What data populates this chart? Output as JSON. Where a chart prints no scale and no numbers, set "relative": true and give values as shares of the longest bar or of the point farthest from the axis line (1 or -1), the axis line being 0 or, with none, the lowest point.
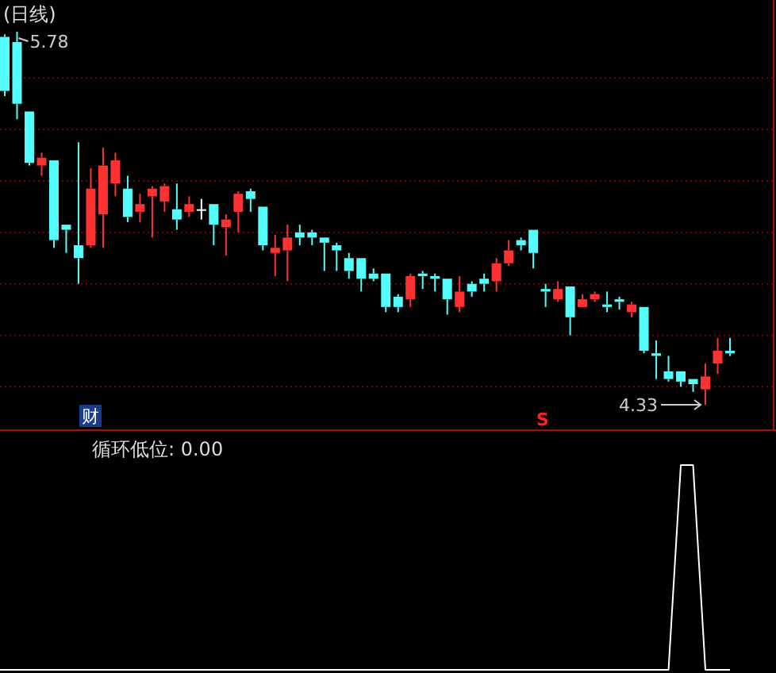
{
  "chart_data": [
    {
      "type": "candlestick",
      "title": "(日线)",
      "categories": [
        null,
        null,
        null,
        null,
        null,
        null,
        null,
        null,
        null,
        null,
        null,
        null,
        null,
        null,
        null,
        null,
        null,
        null,
        null,
        null,
        null,
        null,
        null,
        null,
        null,
        null,
        null,
        null,
        null,
        null,
        null,
        null,
        null,
        null,
        null,
        null,
        null,
        null,
        null,
        null,
        null,
        null,
        null,
        null,
        null,
        null,
        null,
        null,
        null,
        null,
        null,
        null,
        null,
        null,
        null,
        null,
        null,
        null,
        null,
        null
      ],
      "ohlc": [
        [
          5.76,
          5.77,
          5.53,
          5.55
        ],
        [
          5.74,
          5.78,
          5.44,
          5.5
        ],
        [
          5.47,
          5.47,
          5.26,
          5.27
        ],
        [
          5.26,
          5.31,
          5.22,
          5.29
        ],
        [
          5.28,
          5.28,
          4.94,
          4.97
        ],
        [
          5.03,
          5.03,
          4.92,
          5.01
        ],
        [
          4.95,
          5.35,
          4.8,
          4.9
        ],
        [
          4.95,
          5.25,
          4.94,
          5.17
        ],
        [
          5.07,
          5.33,
          4.94,
          5.26
        ],
        [
          5.19,
          5.31,
          5.14,
          5.28
        ],
        [
          5.17,
          5.22,
          5.04,
          5.06
        ],
        [
          5.08,
          5.15,
          5.04,
          5.11
        ],
        [
          5.14,
          5.18,
          4.98,
          5.17
        ],
        [
          5.12,
          5.19,
          5.08,
          5.18
        ],
        [
          5.09,
          5.19,
          5.01,
          5.05
        ],
        [
          5.08,
          5.14,
          5.06,
          5.11
        ],
        [
          5.09,
          5.13,
          5.05,
          5.09
        ],
        [
          5.11,
          5.11,
          4.95,
          5.03
        ],
        [
          5.02,
          5.07,
          4.91,
          5.05
        ],
        [
          5.08,
          5.16,
          5.0,
          5.15
        ],
        [
          5.16,
          5.17,
          5.08,
          5.13
        ],
        [
          5.1,
          5.1,
          4.93,
          4.95
        ],
        [
          4.92,
          4.99,
          4.83,
          4.94
        ],
        [
          4.93,
          5.03,
          4.81,
          4.98
        ],
        [
          5.0,
          5.03,
          4.95,
          4.98
        ],
        [
          5.0,
          5.01,
          4.95,
          4.98
        ],
        [
          4.98,
          4.98,
          4.85,
          4.96
        ],
        [
          4.95,
          4.96,
          4.85,
          4.93
        ],
        [
          4.9,
          4.92,
          4.82,
          4.85
        ],
        [
          4.9,
          4.9,
          4.77,
          4.82
        ],
        [
          4.84,
          4.86,
          4.81,
          4.82
        ],
        [
          4.84,
          4.84,
          4.69,
          4.71
        ],
        [
          4.75,
          4.76,
          4.69,
          4.71
        ],
        [
          4.74,
          4.84,
          4.71,
          4.83
        ],
        [
          4.84,
          4.85,
          4.78,
          4.83
        ],
        [
          4.83,
          4.84,
          4.77,
          4.82
        ],
        [
          4.82,
          4.82,
          4.68,
          4.74
        ],
        [
          4.71,
          4.83,
          4.69,
          4.77
        ],
        [
          4.8,
          4.81,
          4.75,
          4.77
        ],
        [
          4.82,
          4.84,
          4.77,
          4.8
        ],
        [
          4.81,
          4.9,
          4.77,
          4.88
        ],
        [
          4.88,
          4.97,
          4.87,
          4.93
        ],
        [
          4.97,
          4.98,
          4.93,
          4.95
        ],
        [
          5.01,
          5.01,
          4.86,
          4.92
        ],
        [
          4.78,
          4.8,
          4.71,
          4.77
        ],
        [
          4.74,
          4.81,
          4.73,
          4.78
        ],
        [
          4.79,
          4.79,
          4.6,
          4.67
        ],
        [
          4.71,
          4.76,
          4.71,
          4.74
        ],
        [
          4.74,
          4.77,
          4.73,
          4.76
        ],
        [
          4.72,
          4.77,
          4.69,
          4.71
        ],
        [
          4.74,
          4.75,
          4.7,
          4.73
        ],
        [
          4.69,
          4.73,
          4.67,
          4.72
        ],
        [
          4.71,
          4.71,
          4.53,
          4.54
        ],
        [
          4.53,
          4.58,
          4.43,
          4.52
        ],
        [
          4.46,
          4.52,
          4.42,
          4.43
        ],
        [
          4.46,
          4.46,
          4.4,
          4.42
        ],
        [
          4.43,
          4.43,
          4.38,
          4.41
        ],
        [
          4.39,
          4.49,
          4.33,
          4.44
        ],
        [
          4.49,
          4.59,
          4.45,
          4.54
        ],
        [
          4.54,
          4.59,
          4.52,
          4.53
        ]
      ],
      "yticks": [
        {
          "value": 4.4,
          "label": null
        },
        {
          "value": 4.6,
          "label": null
        },
        {
          "value": 4.8,
          "label": null
        },
        {
          "value": 5.0,
          "label": null
        },
        {
          "value": 5.2,
          "label": null
        },
        {
          "value": 5.4,
          "label": null
        },
        {
          "value": 5.6,
          "label": null
        }
      ],
      "grid": "y",
      "annotations": [
        "5.78",
        "4.33",
        "财",
        "S"
      ]
    },
    {
      "type": "line",
      "title": "循环低位: 0.00",
      "relative": true,
      "categories": [
        null,
        null,
        null,
        null,
        null,
        null,
        null,
        null,
        null,
        null,
        null,
        null,
        null,
        null,
        null,
        null,
        null,
        null,
        null,
        null,
        null,
        null,
        null,
        null,
        null,
        null,
        null,
        null,
        null,
        null,
        null,
        null,
        null,
        null,
        null,
        null,
        null,
        null,
        null,
        null,
        null,
        null,
        null,
        null,
        null,
        null,
        null,
        null,
        null,
        null,
        null,
        null,
        null,
        null,
        null,
        null,
        null,
        null,
        null,
        null
      ],
      "series": [
        {
          "color": "#ffffff",
          "values": [
            0,
            0,
            0,
            0,
            0,
            0,
            0,
            0,
            0,
            0,
            0,
            0,
            0,
            0,
            0,
            0,
            0,
            0,
            0,
            0,
            0,
            0,
            0,
            0,
            0,
            0,
            0,
            0,
            0,
            0,
            0,
            0,
            0,
            0,
            0,
            0,
            0,
            0,
            0,
            0,
            0,
            0,
            0,
            0,
            0,
            0,
            0,
            0,
            0,
            0,
            0,
            0,
            0,
            0,
            0,
            1,
            1,
            0,
            0,
            0
          ]
        }
      ]
    }
  ]
}
